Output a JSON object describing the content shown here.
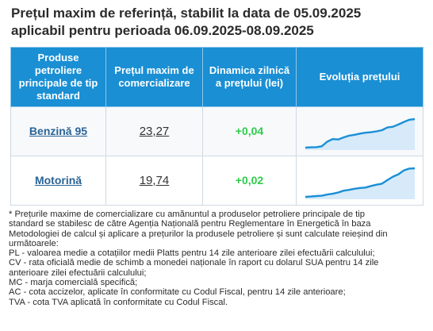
{
  "title": {
    "line1": "Prețul maxim de referință, stabilit la data de 05.09.2025",
    "line2": "aplicabil pentru perioada 06.09.2025-08.09.2025"
  },
  "table": {
    "headers": {
      "product": "Produse petroliere principale de tip standard",
      "price": "Prețul maxim de comercializare",
      "dynamics": "Dinamica zilnică a prețului (lei)",
      "evolution": "Evoluția prețului"
    },
    "rows": [
      {
        "product": "Benzină 95",
        "price": "23,27",
        "dynamics": "+0,04",
        "trend": [
          21.6,
          21.62,
          21.63,
          21.68,
          21.95,
          22.1,
          22.08,
          22.2,
          22.3,
          22.35,
          22.42,
          22.47,
          22.5,
          22.55,
          22.62,
          22.78,
          22.82,
          22.95,
          23.1,
          23.23,
          23.27
        ]
      },
      {
        "product": "Motorină",
        "price": "19,74",
        "dynamics": "+0,02",
        "trend": [
          17.9,
          17.92,
          17.95,
          17.97,
          18.05,
          18.1,
          18.18,
          18.3,
          18.35,
          18.42,
          18.47,
          18.5,
          18.6,
          18.68,
          18.75,
          18.98,
          19.2,
          19.35,
          19.6,
          19.72,
          19.74
        ]
      }
    ],
    "trend_color": "#1a8fd4",
    "trend_fill": "#d6eafa"
  },
  "notes": [
    "* Prețurile maxime de comercializare cu amănuntul a produselor petroliere principale de tip",
    "standard se stabilesc de către Agenția Națională pentru Reglementare în Energetică în baza",
    "Metodologiei de calcul și aplicare a prețurilor la produsele petroliere și sunt calculate reieșind din",
    "următoarele:",
    "PL - valoarea medie a cotațiilor medii Platts pentru 14 zile anterioare zilei efectuării calculului;",
    "CV - rata oficială medie de schimb a monedei naționale în raport cu dolarul SUA pentru 14 zile",
    "anterioare zilei efectuării calculului;",
    "MC - marja comercială specifică;",
    "AC - cota accizelor, aplicate în conformitate cu Codul Fiscal, pentru 14 zile anterioare;",
    "TVA - cota TVA aplicată în conformitate cu Codul Fiscal."
  ]
}
